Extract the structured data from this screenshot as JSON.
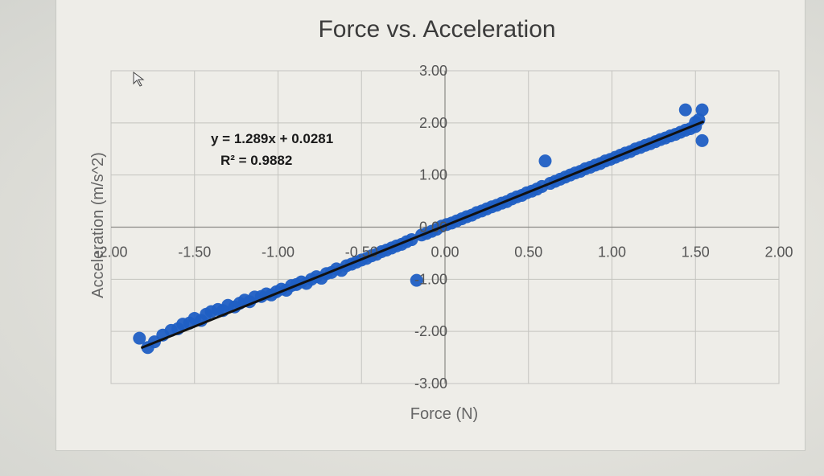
{
  "chart_data": {
    "type": "scatter",
    "title": "Force vs. Acceleration",
    "xlabel": "Force (N)",
    "ylabel": "Acceleration (m/s^2)",
    "xlim": [
      -2.0,
      2.0
    ],
    "ylim": [
      -3.0,
      3.0
    ],
    "x_ticks": [
      "-2.00",
      "-1.50",
      "-1.00",
      "-0.50",
      "0.00",
      "0.50",
      "1.00",
      "1.50",
      "2.00"
    ],
    "y_ticks": [
      "3.00",
      "2.00",
      "1.00",
      "0.00",
      "-1.00",
      "-2.00",
      "-3.00"
    ],
    "grid": true,
    "legend": "none",
    "colors": {
      "points": "#1f5fc4",
      "trendline": "#111111"
    },
    "trendline": {
      "slope": 1.289,
      "intercept": 0.0281,
      "x_range": [
        -1.82,
        1.55
      ],
      "equation_label": "y = 1.289x + 0.0281",
      "r2_label": "R² = 0.9882"
    },
    "series": [
      {
        "points": [
          [
            -1.83,
            -2.13
          ],
          [
            -1.78,
            -2.31
          ],
          [
            -1.74,
            -2.2
          ],
          [
            -1.69,
            -2.07
          ],
          [
            -1.64,
            -1.98
          ],
          [
            -1.6,
            -1.95
          ],
          [
            -1.57,
            -1.86
          ],
          [
            -1.53,
            -1.84
          ],
          [
            -1.5,
            -1.75
          ],
          [
            -1.46,
            -1.79
          ],
          [
            -1.43,
            -1.67
          ],
          [
            -1.4,
            -1.62
          ],
          [
            -1.36,
            -1.58
          ],
          [
            -1.33,
            -1.6
          ],
          [
            -1.3,
            -1.5
          ],
          [
            -1.26,
            -1.53
          ],
          [
            -1.23,
            -1.46
          ],
          [
            -1.2,
            -1.4
          ],
          [
            -1.17,
            -1.43
          ],
          [
            -1.14,
            -1.34
          ],
          [
            -1.1,
            -1.33
          ],
          [
            -1.07,
            -1.28
          ],
          [
            -1.04,
            -1.3
          ],
          [
            -1.01,
            -1.24
          ],
          [
            -0.98,
            -1.19
          ],
          [
            -0.95,
            -1.21
          ],
          [
            -0.92,
            -1.12
          ],
          [
            -0.89,
            -1.1
          ],
          [
            -0.86,
            -1.05
          ],
          [
            -0.83,
            -1.08
          ],
          [
            -0.8,
            -1.0
          ],
          [
            -0.77,
            -0.95
          ],
          [
            -0.74,
            -0.98
          ],
          [
            -0.71,
            -0.89
          ],
          [
            -0.68,
            -0.87
          ],
          [
            -0.65,
            -0.8
          ],
          [
            -0.62,
            -0.83
          ],
          [
            -0.59,
            -0.74
          ],
          [
            -0.56,
            -0.71
          ],
          [
            -0.53,
            -0.67
          ],
          [
            -0.5,
            -0.63
          ],
          [
            -0.47,
            -0.6
          ],
          [
            -0.44,
            -0.55
          ],
          [
            -0.41,
            -0.52
          ],
          [
            -0.38,
            -0.47
          ],
          [
            -0.35,
            -0.44
          ],
          [
            -0.32,
            -0.4
          ],
          [
            -0.29,
            -0.36
          ],
          [
            -0.26,
            -0.33
          ],
          [
            -0.23,
            -0.28
          ],
          [
            -0.2,
            -0.24
          ],
          [
            -0.17,
            -1.02
          ],
          [
            -0.14,
            -0.15
          ],
          [
            -0.11,
            -0.12
          ],
          [
            -0.08,
            -0.08
          ],
          [
            -0.05,
            -0.04
          ],
          [
            -0.02,
            0.02
          ],
          [
            0.01,
            0.05
          ],
          [
            0.04,
            0.08
          ],
          [
            0.07,
            0.12
          ],
          [
            0.1,
            0.16
          ],
          [
            0.13,
            0.2
          ],
          [
            0.16,
            0.23
          ],
          [
            0.19,
            0.28
          ],
          [
            0.22,
            0.31
          ],
          [
            0.25,
            0.35
          ],
          [
            0.28,
            0.39
          ],
          [
            0.31,
            0.42
          ],
          [
            0.34,
            0.46
          ],
          [
            0.37,
            0.49
          ],
          [
            0.4,
            0.54
          ],
          [
            0.43,
            0.58
          ],
          [
            0.46,
            0.61
          ],
          [
            0.49,
            0.66
          ],
          [
            0.52,
            0.69
          ],
          [
            0.55,
            0.73
          ],
          [
            0.58,
            0.78
          ],
          [
            0.6,
            1.27
          ],
          [
            0.63,
            0.84
          ],
          [
            0.66,
            0.88
          ],
          [
            0.69,
            0.92
          ],
          [
            0.72,
            0.96
          ],
          [
            0.75,
            1.0
          ],
          [
            0.78,
            1.04
          ],
          [
            0.81,
            1.07
          ],
          [
            0.84,
            1.12
          ],
          [
            0.87,
            1.15
          ],
          [
            0.9,
            1.19
          ],
          [
            0.93,
            1.22
          ],
          [
            0.96,
            1.27
          ],
          [
            0.99,
            1.3
          ],
          [
            1.02,
            1.34
          ],
          [
            1.05,
            1.38
          ],
          [
            1.08,
            1.42
          ],
          [
            1.11,
            1.45
          ],
          [
            1.14,
            1.5
          ],
          [
            1.17,
            1.53
          ],
          [
            1.2,
            1.57
          ],
          [
            1.23,
            1.6
          ],
          [
            1.26,
            1.64
          ],
          [
            1.29,
            1.68
          ],
          [
            1.32,
            1.71
          ],
          [
            1.35,
            1.75
          ],
          [
            1.38,
            1.78
          ],
          [
            1.41,
            1.82
          ],
          [
            1.44,
            1.86
          ],
          [
            1.47,
            1.89
          ],
          [
            1.5,
            1.93
          ],
          [
            1.44,
            2.25
          ],
          [
            1.54,
            2.25
          ],
          [
            1.54,
            1.66
          ],
          [
            1.5,
            2.01
          ],
          [
            1.52,
            2.06
          ]
        ]
      }
    ]
  }
}
